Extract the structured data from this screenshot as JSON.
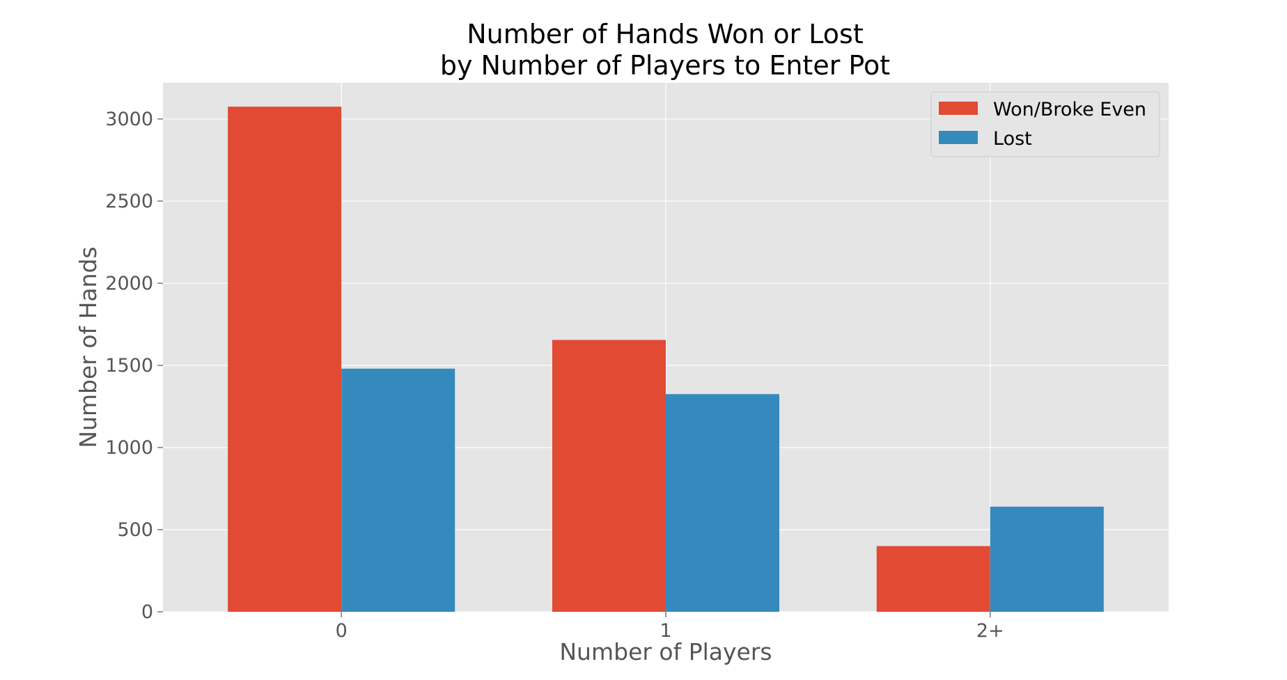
{
  "chart_data": {
    "type": "bar",
    "title_lines": [
      "Number of Hands Won or Lost",
      "by Number of Players to Enter Pot"
    ],
    "xlabel": "Number of Players",
    "ylabel": "Number of Hands",
    "categories": [
      "0",
      "1",
      "2+"
    ],
    "series": [
      {
        "name": "Won/Broke Even",
        "color": "#E24A33",
        "values": [
          3075,
          1655,
          400
        ]
      },
      {
        "name": "Lost",
        "color": "#348ABD",
        "values": [
          1480,
          1325,
          640
        ]
      }
    ],
    "ylim": [
      0,
      3220
    ],
    "yticks": [
      0,
      500,
      1000,
      1500,
      2000,
      2500,
      3000
    ],
    "grid": true,
    "legend_position": "top-right",
    "style": {
      "plot_background": "#E5E5E5",
      "grid_color": "#FFFFFF"
    }
  }
}
